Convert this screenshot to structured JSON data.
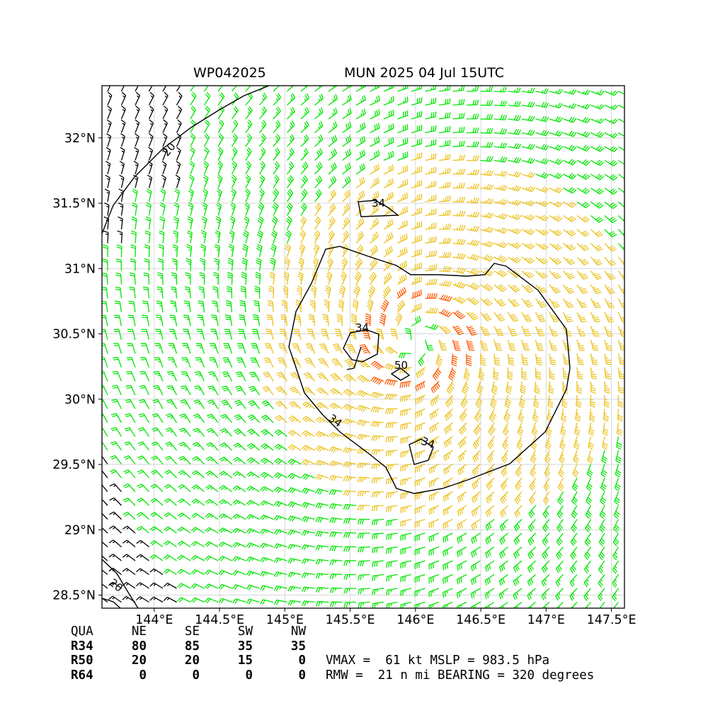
{
  "header": {
    "storm_id": "WP042025",
    "run_info": "MUN 2025 04 Jul 15UTC"
  },
  "map": {
    "lon_ticks": [
      "144°E",
      "144.5°E",
      "145°E",
      "145.5°E",
      "146°E",
      "146.5°E",
      "147°E",
      "147.5°E"
    ],
    "lat_ticks": [
      "32°N",
      "31.5°N",
      "31°N",
      "30.5°N",
      "30°N",
      "29.5°N",
      "29°N",
      "28.5°N"
    ],
    "lon_values": [
      144,
      144.5,
      145,
      145.5,
      146,
      146.5,
      147,
      147.5
    ],
    "lat_values": [
      32,
      31.5,
      31,
      30.5,
      30,
      29.5,
      29,
      28.5
    ],
    "lon_range": [
      143.6,
      147.6
    ],
    "lat_range": [
      28.4,
      32.4
    ],
    "center": {
      "lon": 146.0,
      "lat": 30.45
    },
    "contour_labels": [
      "34",
      "34",
      "34",
      "34",
      "50",
      "20",
      "20"
    ],
    "barb_colors": {
      "below_20": "#000000",
      "20_to_34": "#00e600",
      "34_to_50": "#ebc21e",
      "50_to_64": "#ff5a00"
    }
  },
  "wind_radii": {
    "header": [
      "QUA",
      "NE",
      "SE",
      "SW",
      "NW"
    ],
    "rows": [
      {
        "label": "R34",
        "values": [
          "80",
          "85",
          "35",
          "35"
        ]
      },
      {
        "label": "R50",
        "values": [
          "20",
          "20",
          "15",
          "0"
        ]
      },
      {
        "label": "R64",
        "values": [
          "0",
          "0",
          "0",
          "0"
        ]
      }
    ]
  },
  "stats": {
    "line1": "VMAX =  61 kt MSLP = 983.5 hPa",
    "line2": "RMW =  21 n mi BEARING = 320 degrees"
  }
}
